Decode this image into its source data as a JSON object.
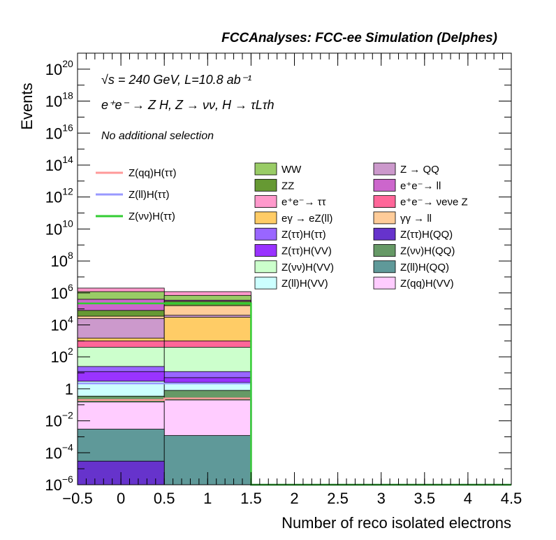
{
  "chart_data": {
    "type": "bar",
    "title": "FCCAnalyses: FCC-ee Simulation (Delphes)",
    "annotations": {
      "energy": "√s = 240 GeV, L=10.8 ab⁻¹",
      "process": "e⁺e⁻ → Z H, Z → νν, H → τLτh",
      "selection": "No additional selection"
    },
    "xlabel": "Number of reco isolated electrons",
    "ylabel": "Events",
    "y_scale": "log",
    "xlim": [
      -0.5,
      4.5
    ],
    "ylim": [
      1e-06,
      1e+21
    ],
    "x_ticks": [
      {
        "v": -0.5,
        "label": "−0.5"
      },
      {
        "v": 0,
        "label": "0"
      },
      {
        "v": 0.5,
        "label": "0.5"
      },
      {
        "v": 1,
        "label": "1"
      },
      {
        "v": 1.5,
        "label": "1.5"
      },
      {
        "v": 2,
        "label": "2"
      },
      {
        "v": 2.5,
        "label": "2.5"
      },
      {
        "v": 3,
        "label": "3"
      },
      {
        "v": 3.5,
        "label": "3.5"
      },
      {
        "v": 4,
        "label": "4"
      },
      {
        "v": 4.5,
        "label": "4.5"
      }
    ],
    "y_ticks": [
      {
        "exp": -6,
        "label": "10",
        "sup": "−6"
      },
      {
        "exp": -4,
        "label": "10",
        "sup": "−4"
      },
      {
        "exp": -2,
        "label": "10",
        "sup": "−2"
      },
      {
        "exp": 0,
        "label": "1",
        "sup": ""
      },
      {
        "exp": 2,
        "label": "10",
        "sup": "2"
      },
      {
        "exp": 4,
        "label": "10",
        "sup": "4"
      },
      {
        "exp": 6,
        "label": "10",
        "sup": "6"
      },
      {
        "exp": 8,
        "label": "10",
        "sup": "8"
      },
      {
        "exp": 10,
        "label": "10",
        "sup": "10"
      },
      {
        "exp": 12,
        "label": "10",
        "sup": "12"
      },
      {
        "exp": 14,
        "label": "10",
        "sup": "14"
      },
      {
        "exp": 16,
        "label": "10",
        "sup": "16"
      },
      {
        "exp": 18,
        "label": "10",
        "sup": "18"
      },
      {
        "exp": 20,
        "label": "10",
        "sup": "20"
      }
    ],
    "bins": [
      {
        "low": -0.5,
        "high": 0.5
      },
      {
        "low": 0.5,
        "high": 1.5
      },
      {
        "low": 1.5,
        "high": 2.5
      },
      {
        "low": 2.5,
        "high": 3.5
      },
      {
        "low": 3.5,
        "high": 4.5
      }
    ],
    "stack_tops": [
      {
        "name": "Z(ττ)H(QQ)",
        "color": "#6633cc",
        "values": [
          3e-05,
          1e-06,
          0,
          0,
          0
        ]
      },
      {
        "name": "Z(ll)H(QQ)",
        "color": "#5f9999",
        "values": [
          0.003,
          0.0012,
          0,
          0,
          0
        ]
      },
      {
        "name": "Z(qq)H(VV)",
        "color": "#ffccff",
        "values": [
          0.15,
          0.2,
          0,
          0,
          0
        ]
      },
      {
        "name": "Z(νν)H(QQ)",
        "color": "#669966",
        "values": [
          0.35,
          0.8,
          0,
          0,
          0
        ]
      },
      {
        "name": "Z(ll)H(VV)",
        "color": "#ccffff",
        "values": [
          3,
          2.5,
          0,
          0,
          0
        ]
      },
      {
        "name": "Z(ττ)H(VV)",
        "color": "#9933ff",
        "values": [
          12,
          5,
          0,
          0,
          0
        ]
      },
      {
        "name": "Z(ττ)H(ττ)",
        "color": "#9966ff",
        "values": [
          25,
          12,
          0,
          0,
          0
        ]
      },
      {
        "name": "Z(νν)H(VV)",
        "color": "#ccffcc",
        "values": [
          400,
          400,
          0,
          0,
          0
        ]
      },
      {
        "name": "e⁺e⁻→ νeνe Z",
        "color": "#ff6699",
        "values": [
          1000,
          1000,
          0,
          0,
          0
        ]
      },
      {
        "name": "eγ → eZ(ll)",
        "color": "#ffcc66",
        "values": [
          1500,
          30000,
          0,
          0,
          0
        ]
      },
      {
        "name": "Z → QQ",
        "color": "#cc99cc",
        "values": [
          25000,
          40000,
          0,
          0,
          0
        ]
      },
      {
        "name": "γγ → ll",
        "color": "#ffcc99",
        "values": [
          35000,
          160000,
          0,
          0,
          0
        ]
      },
      {
        "name": "ZZ",
        "color": "#669933",
        "values": [
          80000,
          300000,
          0,
          0,
          0
        ]
      },
      {
        "name": "e⁺e⁻→ ll",
        "color": "#cc66cc",
        "values": [
          400000,
          350000,
          0,
          0,
          0
        ]
      },
      {
        "name": "WW",
        "color": "#99cc66",
        "values": [
          1200000,
          700000,
          0,
          0,
          0
        ]
      },
      {
        "name": "e⁺e⁻→ ττ",
        "color": "#ff99cc",
        "values": [
          2000000,
          1200000,
          0,
          0,
          0
        ]
      }
    ],
    "signal_lines": [
      {
        "name": "Z(qq)H(ττ)",
        "color": "#ff9999",
        "values": [
          0.2,
          0.25,
          0,
          0,
          0
        ]
      },
      {
        "name": "Z(ll)H(ττ)",
        "color": "#9999ff",
        "values": [
          2.2,
          2.2,
          0,
          0,
          0
        ]
      },
      {
        "name": "Z(νν)H(ττ)",
        "color": "#33cc33",
        "values": [
          220000,
          220000,
          0,
          0,
          0
        ]
      }
    ],
    "legend_left": [
      {
        "label": "Z(qq)H(ττ)",
        "color": "#ff9999"
      },
      {
        "label": "Z(ll)H(ττ)",
        "color": "#9999ff"
      },
      {
        "label": "Z(νν)H(ττ)",
        "color": "#33cc33"
      }
    ],
    "legend_col1": [
      {
        "label": "WW",
        "color": "#99cc66"
      },
      {
        "label": "ZZ",
        "color": "#669933"
      },
      {
        "label": "e⁺e⁻→ ττ",
        "color": "#ff99cc"
      },
      {
        "label": "eγ → eZ(ll)",
        "color": "#ffcc66"
      },
      {
        "label": "Z(ττ)H(ττ)",
        "color": "#9966ff"
      },
      {
        "label": "Z(ττ)H(VV)",
        "color": "#9933ff"
      },
      {
        "label": "Z(νν)H(VV)",
        "color": "#ccffcc"
      },
      {
        "label": "Z(ll)H(VV)",
        "color": "#ccffff"
      }
    ],
    "legend_col2": [
      {
        "label": "Z → QQ",
        "color": "#cc99cc"
      },
      {
        "label": "e⁺e⁻→ ll",
        "color": "#cc66cc"
      },
      {
        "label": "e⁺e⁻→ νeνe Z",
        "color": "#ff6699"
      },
      {
        "label": "γγ → ll",
        "color": "#ffcc99"
      },
      {
        "label": "Z(ττ)H(QQ)",
        "color": "#6633cc"
      },
      {
        "label": "Z(νν)H(QQ)",
        "color": "#669966"
      },
      {
        "label": "Z(ll)H(QQ)",
        "color": "#5f9999"
      },
      {
        "label": "Z(qq)H(VV)",
        "color": "#ffccff"
      }
    ]
  }
}
